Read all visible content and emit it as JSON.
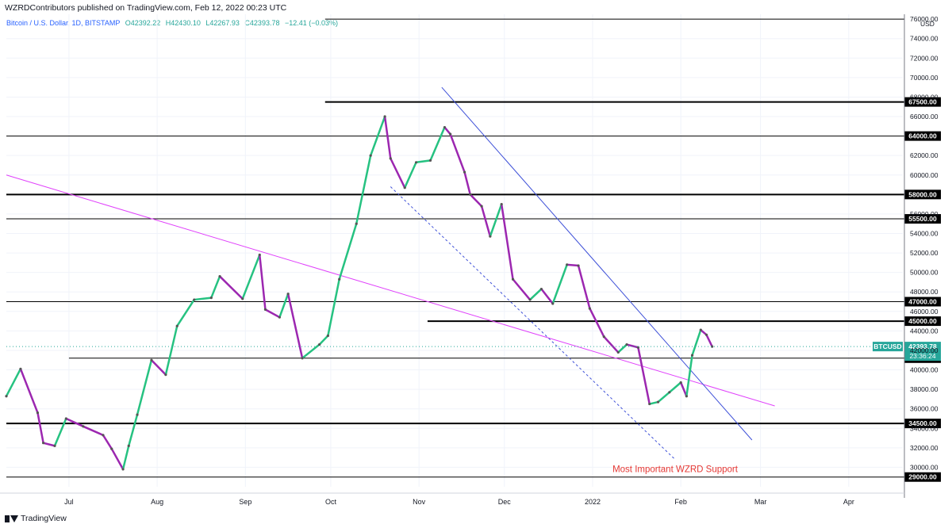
{
  "header": {
    "publisher": "WZRDContributors published on TradingView.com, Feb 12, 2022 00:23 UTC"
  },
  "legend": {
    "symbol": "Bitcoin / U.S. Dollar, 1D, BITSTAMP",
    "open": "O42392.22",
    "high": "H42430.10",
    "low": "L42267.93",
    "close": "C42393.78",
    "change": "−12.41 (−0.03%)"
  },
  "footer": {
    "brand": "TradingView"
  },
  "chart_data": {
    "type": "line",
    "title": "Bitcoin / U.S. Dollar, 1D, BITSTAMP",
    "currency": "USD",
    "ylim": [
      28000,
      76500
    ],
    "y_ticks": [
      30000,
      32000,
      34000,
      36000,
      38000,
      40000,
      42000,
      44000,
      46000,
      48000,
      50000,
      52000,
      54000,
      56000,
      60000,
      62000,
      66000,
      68000,
      70000,
      72000,
      74000
    ],
    "x_ticks": [
      {
        "label": "Jul",
        "date": "2021-07-01"
      },
      {
        "label": "Aug",
        "date": "2021-08-01"
      },
      {
        "label": "Sep",
        "date": "2021-09-01"
      },
      {
        "label": "Oct",
        "date": "2021-10-01"
      },
      {
        "label": "Nov",
        "date": "2021-11-01"
      },
      {
        "label": "Dec",
        "date": "2021-12-01"
      },
      {
        "label": "2022",
        "date": "2022-01-01"
      },
      {
        "label": "Feb",
        "date": "2022-02-01"
      },
      {
        "label": "Mar",
        "date": "2022-03-01"
      },
      {
        "label": "Apr",
        "date": "2022-04-01"
      }
    ],
    "x_start": "2021-06-09",
    "x_end": "2022-04-20",
    "up_color": "#26c281",
    "down_color": "#9c27b0",
    "last_price": {
      "symbol": "BTCUSD",
      "price": "42393.78",
      "countdown": "23:36:24",
      "value": 42393.78,
      "color": "#26a69a"
    },
    "price_path": [
      {
        "date": "2021-06-09",
        "value": 37300
      },
      {
        "date": "2021-06-14",
        "value": 40100
      },
      {
        "date": "2021-06-20",
        "value": 35600
      },
      {
        "date": "2021-06-22",
        "value": 32500
      },
      {
        "date": "2021-06-26",
        "value": 32200
      },
      {
        "date": "2021-06-30",
        "value": 35000
      },
      {
        "date": "2021-07-06",
        "value": 34200
      },
      {
        "date": "2021-07-13",
        "value": 33300
      },
      {
        "date": "2021-07-16",
        "value": 31900
      },
      {
        "date": "2021-07-20",
        "value": 29800
      },
      {
        "date": "2021-07-22",
        "value": 32200
      },
      {
        "date": "2021-07-25",
        "value": 35400
      },
      {
        "date": "2021-07-30",
        "value": 41000
      },
      {
        "date": "2021-08-04",
        "value": 39500
      },
      {
        "date": "2021-08-08",
        "value": 44500
      },
      {
        "date": "2021-08-14",
        "value": 47200
      },
      {
        "date": "2021-08-20",
        "value": 47400
      },
      {
        "date": "2021-08-23",
        "value": 49600
      },
      {
        "date": "2021-08-31",
        "value": 47300
      },
      {
        "date": "2021-09-06",
        "value": 51800
      },
      {
        "date": "2021-09-08",
        "value": 46200
      },
      {
        "date": "2021-09-13",
        "value": 45400
      },
      {
        "date": "2021-09-16",
        "value": 47800
      },
      {
        "date": "2021-09-21",
        "value": 41200
      },
      {
        "date": "2021-09-27",
        "value": 42600
      },
      {
        "date": "2021-09-30",
        "value": 43500
      },
      {
        "date": "2021-10-04",
        "value": 49300
      },
      {
        "date": "2021-10-10",
        "value": 55000
      },
      {
        "date": "2021-10-15",
        "value": 62000
      },
      {
        "date": "2021-10-20",
        "value": 66000
      },
      {
        "date": "2021-10-22",
        "value": 61700
      },
      {
        "date": "2021-10-27",
        "value": 58700
      },
      {
        "date": "2021-10-31",
        "value": 61300
      },
      {
        "date": "2021-11-05",
        "value": 61500
      },
      {
        "date": "2021-11-10",
        "value": 64900
      },
      {
        "date": "2021-11-12",
        "value": 64200
      },
      {
        "date": "2021-11-17",
        "value": 60300
      },
      {
        "date": "2021-11-19",
        "value": 58000
      },
      {
        "date": "2021-11-23",
        "value": 56800
      },
      {
        "date": "2021-11-26",
        "value": 53700
      },
      {
        "date": "2021-11-30",
        "value": 57000
      },
      {
        "date": "2021-12-04",
        "value": 49300
      },
      {
        "date": "2021-12-10",
        "value": 47200
      },
      {
        "date": "2021-12-14",
        "value": 48300
      },
      {
        "date": "2021-12-18",
        "value": 46800
      },
      {
        "date": "2021-12-23",
        "value": 50800
      },
      {
        "date": "2021-12-27",
        "value": 50700
      },
      {
        "date": "2021-12-31",
        "value": 46300
      },
      {
        "date": "2022-01-05",
        "value": 43400
      },
      {
        "date": "2022-01-10",
        "value": 41800
      },
      {
        "date": "2022-01-13",
        "value": 42600
      },
      {
        "date": "2022-01-17",
        "value": 42300
      },
      {
        "date": "2022-01-21",
        "value": 36500
      },
      {
        "date": "2022-01-24",
        "value": 36700
      },
      {
        "date": "2022-01-28",
        "value": 37700
      },
      {
        "date": "2022-02-01",
        "value": 38700
      },
      {
        "date": "2022-02-03",
        "value": 37300
      },
      {
        "date": "2022-02-05",
        "value": 41500
      },
      {
        "date": "2022-02-08",
        "value": 44100
      },
      {
        "date": "2022-02-10",
        "value": 43600
      },
      {
        "date": "2022-02-12",
        "value": 42394
      }
    ],
    "horizontal_levels": [
      {
        "label": "76000.00",
        "value": 76000,
        "from": "2021-09-29",
        "weight": 1,
        "label_style": "plain"
      },
      {
        "label": "67500.00",
        "value": 67500,
        "from": "2021-09-29",
        "weight": 2,
        "label_style": "box"
      },
      {
        "label": "64000.00",
        "value": 64000,
        "from": "2021-06-09",
        "weight": 1,
        "label_style": "box"
      },
      {
        "label": "58000.00",
        "value": 58000,
        "from": "2021-06-09",
        "weight": 2,
        "label_style": "box"
      },
      {
        "label": "55500.00",
        "value": 55500,
        "from": "2021-06-09",
        "weight": 1,
        "label_style": "box"
      },
      {
        "label": "47000.00",
        "value": 47000,
        "from": "2021-06-09",
        "weight": 1,
        "label_style": "box"
      },
      {
        "label": "45000.00",
        "value": 45000,
        "from": "2021-11-04",
        "weight": 2,
        "label_style": "box"
      },
      {
        "label": "41200.00",
        "value": 41200,
        "from": "2021-07-01",
        "weight": 1,
        "label_style": "box"
      },
      {
        "label": "34500.00",
        "value": 34500,
        "from": "2021-06-09",
        "weight": 2,
        "label_style": "box"
      },
      {
        "label": "29000.00",
        "value": 29000,
        "from": "2021-06-09",
        "weight": 1,
        "label_style": "box"
      }
    ],
    "trendlines": [
      {
        "kind": "solid",
        "color": "#e040fb",
        "points": [
          {
            "date": "2021-06-09",
            "value": 60000
          },
          {
            "date": "2022-03-06",
            "value": 36300
          }
        ]
      },
      {
        "kind": "solid",
        "color": "#3f51d8",
        "points": [
          {
            "date": "2021-11-09",
            "value": 69000
          },
          {
            "date": "2022-02-26",
            "value": 32800
          }
        ]
      },
      {
        "kind": "dashed",
        "color": "#3f51d8",
        "points": [
          {
            "date": "2021-10-22",
            "value": 58800
          },
          {
            "date": "2022-01-30",
            "value": 30800
          }
        ]
      }
    ],
    "annotations": [
      {
        "text": "Most Important WZRD Support",
        "date": "2022-01-30",
        "value": 29850,
        "color": "#e53935"
      }
    ]
  }
}
